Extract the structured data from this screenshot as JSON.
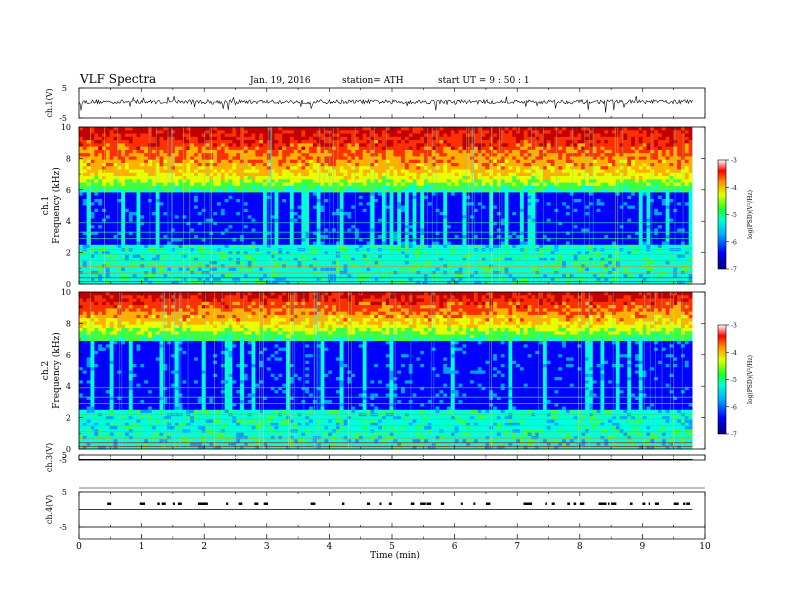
{
  "header": {
    "title": "VLF Spectra",
    "date": "Jan. 19, 2016",
    "station": "station= ATH",
    "start": "start  UT =  9 : 50 : 1"
  },
  "chart_data": {
    "type": "heatmap",
    "time_axis": {
      "label": "Time  (min)",
      "range": [
        0,
        10
      ],
      "ticks": [
        "0",
        "1",
        "2",
        "3",
        "4",
        "5",
        "6",
        "7",
        "8",
        "9",
        "10"
      ]
    },
    "panels": [
      {
        "id": "ch1-waveform",
        "ylabel": "ch.1(V)",
        "yticks": [
          "5",
          "-5"
        ],
        "ylim": [
          -5,
          5
        ],
        "trace_level_v": 0.4,
        "trace_end_min": 9.8
      },
      {
        "id": "ch1-spectrogram",
        "ylabel": "ch.1\nFrequency  (kHz)",
        "ylabel_top": "ch.1",
        "ylabel_bottom": "Frequency  (kHz)",
        "yticks": [
          "0",
          "2",
          "4",
          "6",
          "8",
          "10"
        ],
        "ylim": [
          0,
          10
        ],
        "strong_emission_above_khz": 7.0,
        "quiet_band_khz": [
          2.4,
          5.8
        ],
        "colorbar": {
          "label": "log(PSD)(V²/Hz)",
          "ticks": [
            "-3",
            "-4",
            "-5",
            "-6",
            "-7"
          ],
          "range": [
            -7,
            -3
          ]
        }
      },
      {
        "id": "ch2-spectrogram",
        "ylabel": "ch.2\nFrequency  (kHz)",
        "ylabel_top": "ch.2",
        "ylabel_bottom": "Frequency  (kHz)",
        "yticks": [
          "0",
          "2",
          "4",
          "6",
          "8",
          "10"
        ],
        "ylim": [
          0,
          10
        ],
        "strong_emission_above_khz": 8.0,
        "quiet_band_khz": [
          2.6,
          6.8
        ],
        "colorbar": {
          "label": "log(PSD)(V²/Hz)",
          "ticks": [
            "-3",
            "-4",
            "-5",
            "-6",
            "-7"
          ],
          "range": [
            -7,
            -3
          ]
        }
      },
      {
        "id": "ch3-waveform",
        "ylabel": "ch.3(V)",
        "yticks": [
          "5",
          "-5"
        ],
        "ylim": [
          -5,
          5
        ],
        "trace_level_v": -5,
        "trace_end_min": 9.8
      },
      {
        "id": "ch4-waveform",
        "ylabel": "ch.4(V)",
        "yticks": [
          "5",
          "-5"
        ],
        "ylim": [
          -5,
          5
        ],
        "trace_level_v": 0,
        "pulse_level_v": 2.0,
        "trace_end_min": 9.8
      }
    ],
    "colorscale": [
      "#00007a",
      "#0000ff",
      "#00a0ff",
      "#00ffd8",
      "#40ff40",
      "#e8ff00",
      "#ffb000",
      "#ff3000",
      "#c00000"
    ]
  }
}
